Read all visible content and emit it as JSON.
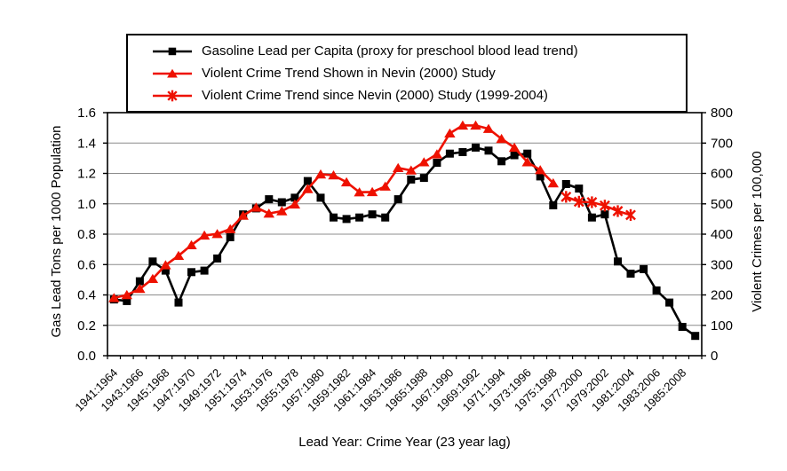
{
  "page": {
    "background": "#ffffff"
  },
  "chart_data": {
    "type": "line",
    "title": "",
    "xlabel": "Lead Year: Crime Year (23 year lag)",
    "ylabel_left": "Gas Lead Tons per 1000 Population",
    "ylabel_right": "Violent Crimes per 100,000",
    "ylim_left": [
      0.0,
      1.6
    ],
    "ylim_right": [
      0,
      800
    ],
    "yticks_left": [
      "1.6",
      "1.4",
      "1.2",
      "1.0",
      "0.8",
      "0.6",
      "0.4",
      "0.2",
      "0.0"
    ],
    "yticks_right": [
      "800",
      "700",
      "600",
      "500",
      "400",
      "300",
      "200",
      "100",
      "0"
    ],
    "n_categories": 46,
    "first_lead_year": 1941,
    "xtick_labels": [
      "1941:1964",
      "1943:1966",
      "1945:1968",
      "1947:1970",
      "1949:1972",
      "1951:1974",
      "1953:1976",
      "1955:1978",
      "1957:1980",
      "1959:1982",
      "1961:1984",
      "1963:1986",
      "1965:1988",
      "1967:1990",
      "1969:1992",
      "1971:1994",
      "1973:1996",
      "1975:1998",
      "1977:2000",
      "1979:2002",
      "1981:2004",
      "1983:2006",
      "1985:2008"
    ],
    "grid": "horizontal",
    "grid_color": "#8c8c8c",
    "legend_position": "top",
    "series": [
      {
        "name": "Gasoline Lead per Capita (proxy for preschool blood lead trend)",
        "marker": "square",
        "color": "#000000",
        "axis": "left",
        "start_index": 0,
        "values": [
          0.37,
          0.36,
          0.49,
          0.62,
          0.56,
          0.35,
          0.55,
          0.56,
          0.64,
          0.78,
          0.93,
          0.97,
          1.03,
          1.01,
          1.04,
          1.15,
          1.04,
          0.91,
          0.9,
          0.91,
          0.93,
          0.91,
          1.03,
          1.16,
          1.17,
          1.27,
          1.33,
          1.34,
          1.37,
          1.35,
          1.28,
          1.32,
          1.33,
          1.18,
          0.99,
          1.13,
          1.1,
          0.91,
          0.93,
          0.62,
          0.54,
          0.57,
          0.43,
          0.35,
          0.19,
          0.13
        ]
      },
      {
        "name": "Violent Crime Trend Shown in Nevin (2000) Study",
        "marker": "triangle",
        "color": "#ee1100",
        "axis": "right",
        "start_index": 0,
        "values": [
          190,
          200,
          220,
          253,
          298,
          329,
          364,
          396,
          401,
          417,
          461,
          488,
          468,
          476,
          498,
          549,
          597,
          594,
          571,
          538,
          539,
          557,
          618,
          610,
          637,
          663,
          732,
          758,
          758,
          747,
          714,
          685,
          637,
          611,
          568
        ]
      },
      {
        "name": "Violent Crime Trend since Nevin (2000) Study (1999-2004)",
        "marker": "asterisk",
        "color": "#ee1100",
        "axis": "right",
        "start_index": 35,
        "values": [
          523,
          507,
          505,
          494,
          476,
          463
        ]
      }
    ]
  }
}
